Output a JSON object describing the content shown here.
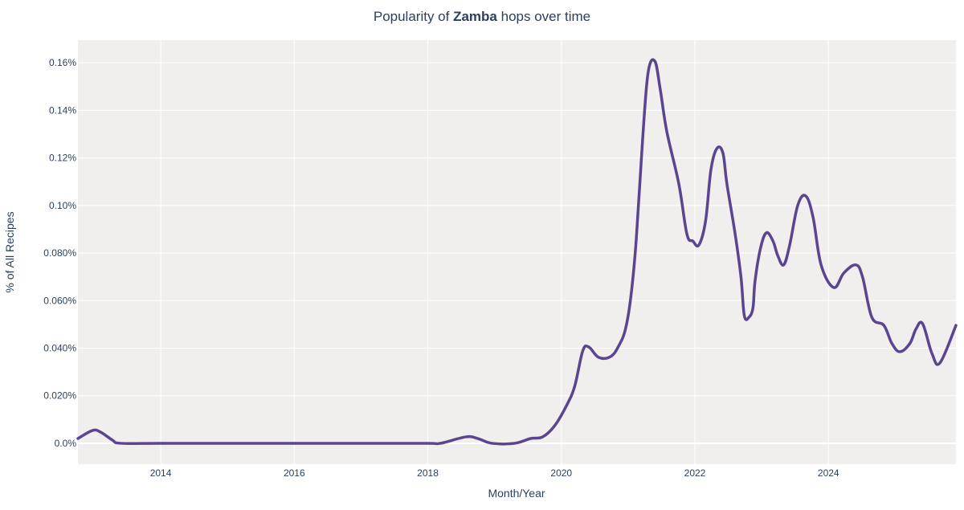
{
  "chart_data": {
    "type": "line",
    "title_prefix": "Popularity of ",
    "title_bold": "Zamba",
    "title_suffix": " hops over time",
    "xlabel": "Month/Year",
    "ylabel": "% of All Recipes",
    "xlim": [
      2012.76,
      2025.91
    ],
    "ylim": [
      -0.0088,
      0.1695
    ],
    "x_ticks": [
      2014,
      2016,
      2018,
      2020,
      2022,
      2024
    ],
    "x_tick_labels": [
      "2014",
      "2016",
      "2018",
      "2020",
      "2022",
      "2024"
    ],
    "y_ticks": [
      0,
      0.02,
      0.04,
      0.06,
      0.08,
      0.1,
      0.12,
      0.14,
      0.16
    ],
    "y_tick_labels": [
      "0.0%",
      "0.020%",
      "0.040%",
      "0.060%",
      "0.080%",
      "0.10%",
      "0.12%",
      "0.14%",
      "0.16%"
    ],
    "grid": true,
    "colors": {
      "line": "#5c4590",
      "plot_bg": "#f0efed",
      "grid": "#ffffff",
      "text": "#2a3f5f"
    },
    "x": [
      2012.76,
      2012.98,
      2013.1,
      2013.28,
      2013.4,
      2014,
      2015,
      2016,
      2017,
      2018,
      2018.19,
      2018.57,
      2018.75,
      2018.96,
      2019.3,
      2019.54,
      2019.72,
      2019.9,
      2020.08,
      2020.2,
      2020.32,
      2020.41,
      2020.56,
      2020.74,
      2020.86,
      2020.96,
      2021.04,
      2021.12,
      2021.22,
      2021.3,
      2021.4,
      2021.48,
      2021.58,
      2021.76,
      2021.88,
      2021.97,
      2022.06,
      2022.16,
      2022.24,
      2022.33,
      2022.42,
      2022.48,
      2022.6,
      2022.69,
      2022.74,
      2022.81,
      2022.87,
      2022.9,
      2022.98,
      2023.07,
      2023.17,
      2023.24,
      2023.33,
      2023.42,
      2023.54,
      2023.66,
      2023.77,
      2023.89,
      2024.08,
      2024.23,
      2024.41,
      2024.51,
      2024.65,
      2024.83,
      2024.95,
      2025.07,
      2025.22,
      2025.31,
      2025.41,
      2025.55,
      2025.67,
      2025.91
    ],
    "y": [
      0.002,
      0.0054,
      0.0047,
      0.0013,
      0,
      0,
      0,
      0,
      0,
      0,
      0,
      0.0027,
      0.002,
      0,
      0,
      0.002,
      0.0027,
      0.0074,
      0.016,
      0.024,
      0.0388,
      0.0405,
      0.0361,
      0.0365,
      0.041,
      0.048,
      0.0614,
      0.085,
      0.129,
      0.156,
      0.1607,
      0.149,
      0.131,
      0.109,
      0.088,
      0.085,
      0.0834,
      0.0935,
      0.115,
      0.124,
      0.122,
      0.109,
      0.0885,
      0.07,
      0.0537,
      0.053,
      0.057,
      0.068,
      0.0817,
      0.0885,
      0.085,
      0.079,
      0.075,
      0.0834,
      0.1,
      0.104,
      0.095,
      0.075,
      0.0655,
      0.0716,
      0.075,
      0.07,
      0.053,
      0.0496,
      0.042,
      0.0385,
      0.042,
      0.048,
      0.0503,
      0.0378,
      0.0338,
      0.0496
    ]
  }
}
